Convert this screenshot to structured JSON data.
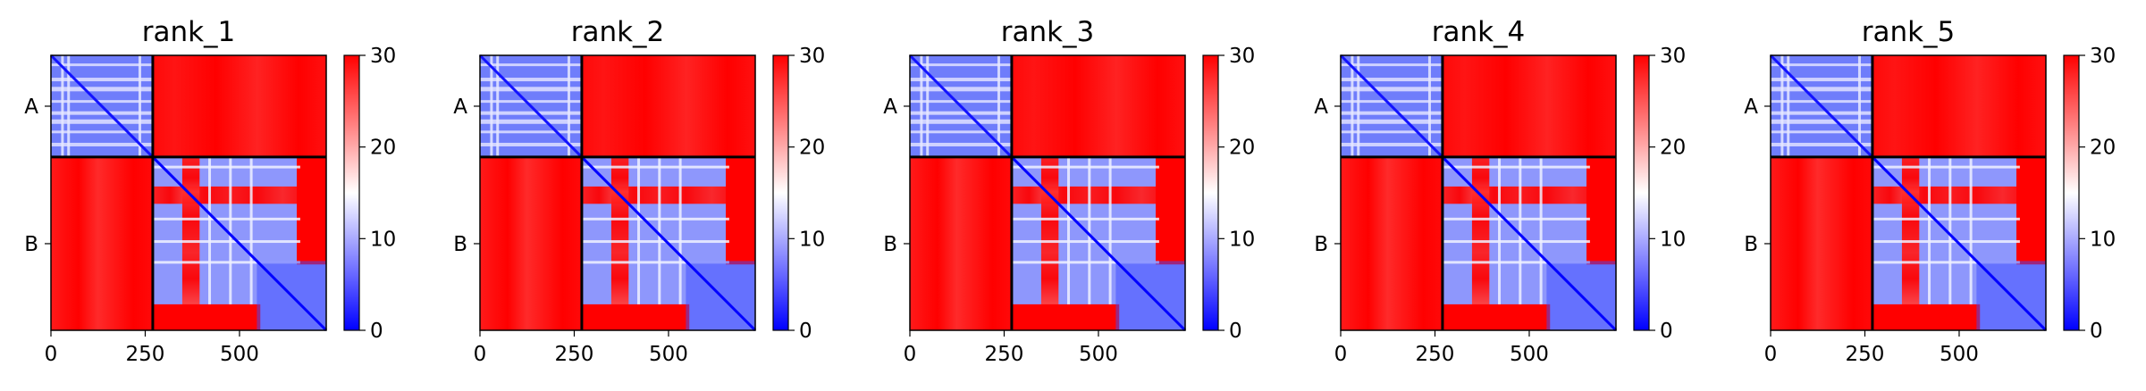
{
  "chart_data": [
    {
      "type": "heatmap",
      "title": "rank_1",
      "chains": [
        "A",
        "B"
      ],
      "chain_boundary": 270,
      "length": 730,
      "xticks": [
        0,
        250,
        500
      ],
      "xlim": [
        0,
        730
      ],
      "colorbar": {
        "ticks": [
          0,
          10,
          20,
          30
        ],
        "range": [
          0,
          30
        ],
        "colors": {
          "low": "#0000ff",
          "mid": "#ffffff",
          "high": "#ff0000"
        }
      }
    },
    {
      "type": "heatmap",
      "title": "rank_2",
      "chains": [
        "A",
        "B"
      ],
      "chain_boundary": 270,
      "length": 730,
      "xticks": [
        0,
        250,
        500
      ],
      "xlim": [
        0,
        730
      ],
      "colorbar": {
        "ticks": [
          0,
          10,
          20,
          30
        ],
        "range": [
          0,
          30
        ],
        "colors": {
          "low": "#0000ff",
          "mid": "#ffffff",
          "high": "#ff0000"
        }
      }
    },
    {
      "type": "heatmap",
      "title": "rank_3",
      "chains": [
        "A",
        "B"
      ],
      "chain_boundary": 270,
      "length": 730,
      "xticks": [
        0,
        250,
        500
      ],
      "xlim": [
        0,
        730
      ],
      "colorbar": {
        "ticks": [
          0,
          10,
          20,
          30
        ],
        "range": [
          0,
          30
        ],
        "colors": {
          "low": "#0000ff",
          "mid": "#ffffff",
          "high": "#ff0000"
        }
      }
    },
    {
      "type": "heatmap",
      "title": "rank_4",
      "chains": [
        "A",
        "B"
      ],
      "chain_boundary": 270,
      "length": 730,
      "xticks": [
        0,
        250,
        500
      ],
      "xlim": [
        0,
        730
      ],
      "colorbar": {
        "ticks": [
          0,
          10,
          20,
          30
        ],
        "range": [
          0,
          30
        ],
        "colors": {
          "low": "#0000ff",
          "mid": "#ffffff",
          "high": "#ff0000"
        }
      }
    },
    {
      "type": "heatmap",
      "title": "rank_5",
      "chains": [
        "A",
        "B"
      ],
      "chain_boundary": 270,
      "length": 730,
      "xticks": [
        0,
        250,
        500
      ],
      "xlim": [
        0,
        730
      ],
      "colorbar": {
        "ticks": [
          0,
          10,
          20,
          30
        ],
        "range": [
          0,
          30
        ],
        "colors": {
          "low": "#0000ff",
          "mid": "#ffffff",
          "high": "#ff0000"
        }
      }
    }
  ]
}
